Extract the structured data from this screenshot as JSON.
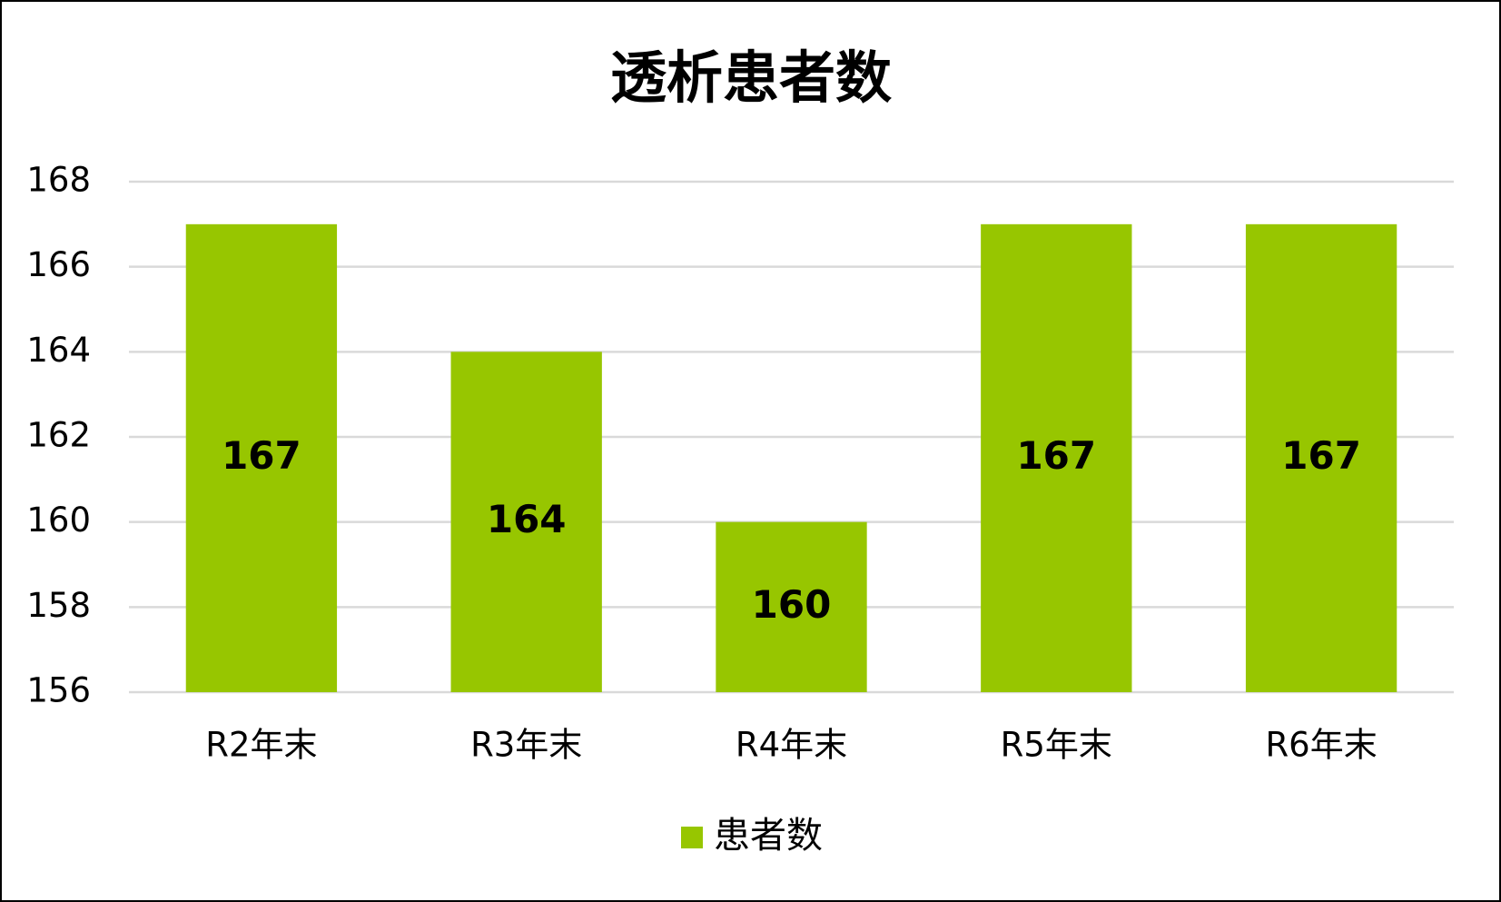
{
  "chart_data": {
    "type": "bar",
    "title": "透析患者数",
    "categories": [
      "R2年末",
      "R3年末",
      "R4年末",
      "R5年末",
      "R6年末"
    ],
    "series": [
      {
        "name": "患者数",
        "color": "#97c600",
        "values": [
          167,
          164,
          160,
          167,
          167
        ]
      }
    ],
    "ylim": [
      156,
      168
    ],
    "yticks": [
      156,
      158,
      160,
      162,
      164,
      166,
      168
    ],
    "grid": true,
    "legend": "bottom"
  }
}
